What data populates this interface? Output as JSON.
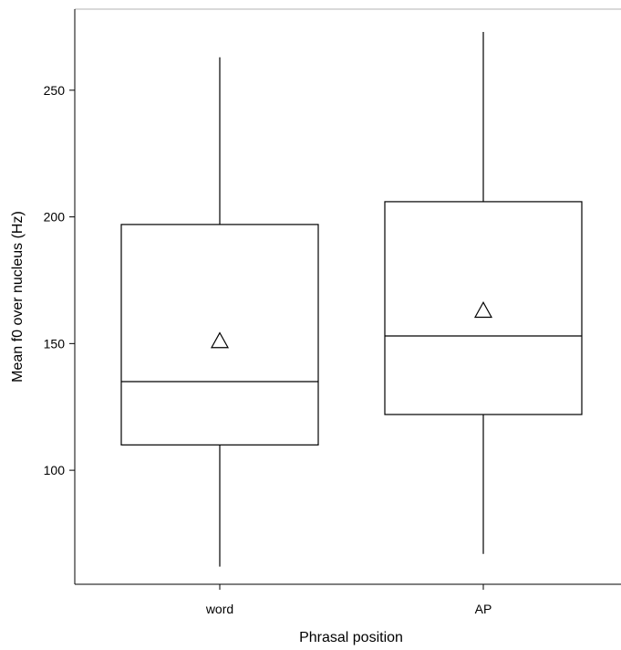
{
  "chart_data": {
    "type": "box",
    "xlabel": "Phrasal position",
    "ylabel": "Mean f0 over nucleus (Hz)",
    "ylim": [
      55,
      282
    ],
    "yticks": [
      100,
      150,
      200,
      250
    ],
    "categories": [
      "word",
      "AP"
    ],
    "boxes": [
      {
        "category": "word",
        "whisker_low": 62,
        "q1": 110,
        "median": 135,
        "q3": 197,
        "whisker_high": 263,
        "mean": 151
      },
      {
        "category": "AP",
        "whisker_low": 67,
        "q1": 122,
        "median": 153,
        "q3": 206,
        "whisker_high": 273,
        "mean": 163
      }
    ],
    "mean_marker": "triangle"
  }
}
